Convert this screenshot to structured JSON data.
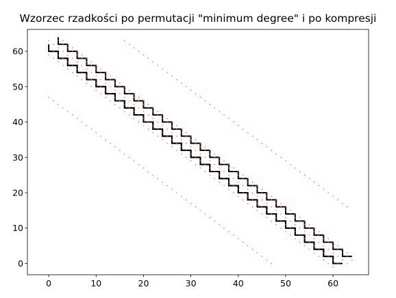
{
  "chart_data": {
    "type": "line",
    "title": "Wzorzec rzadkości po permutacji \"minimum degree\" i po kompresji",
    "xlabel": "",
    "ylabel": "",
    "xlim": [
      -4.5,
      67.5
    ],
    "ylim": [
      -3.2,
      66.2
    ],
    "xticks": [
      0,
      10,
      20,
      30,
      40,
      50,
      60
    ],
    "yticks": [
      0,
      10,
      20,
      30,
      40,
      50,
      60
    ],
    "grid": false,
    "legend": "none",
    "colors": {
      "staircase": "#000000",
      "dots": "#ff4d4d",
      "axes": "#000000"
    },
    "series": [
      {
        "kind": "staircase",
        "start": [
          0,
          62
        ],
        "steps": 31,
        "step": 2,
        "first_move": "down"
      },
      {
        "kind": "staircase",
        "start": [
          2,
          64
        ],
        "steps": 31,
        "step": 2,
        "first_move": "down"
      },
      {
        "kind": "staircase",
        "start": [
          0,
          60
        ],
        "steps": 30,
        "step": 2,
        "first_move": "right"
      },
      {
        "kind": "dotted-diagonal",
        "from": [
          0,
          47
        ],
        "to": [
          47,
          0
        ]
      },
      {
        "kind": "dotted-diagonal",
        "from": [
          16,
          63
        ],
        "to": [
          63,
          16
        ]
      },
      {
        "kind": "dotted-diagonal",
        "from": [
          0,
          63
        ],
        "to": [
          63,
          0
        ]
      },
      {
        "kind": "dotted-diagonal",
        "from": [
          0,
          59
        ],
        "to": [
          60,
          -1
        ]
      },
      {
        "kind": "dotted-diagonal",
        "from": [
          2,
          63
        ],
        "to": [
          64,
          1
        ]
      },
      {
        "kind": "dotted-diagonal",
        "from": [
          1,
          60
        ],
        "to": [
          61,
          0
        ]
      },
      {
        "kind": "dotted-diagonal",
        "from": [
          3,
          63
        ],
        "to": [
          63,
          3
        ]
      }
    ]
  }
}
